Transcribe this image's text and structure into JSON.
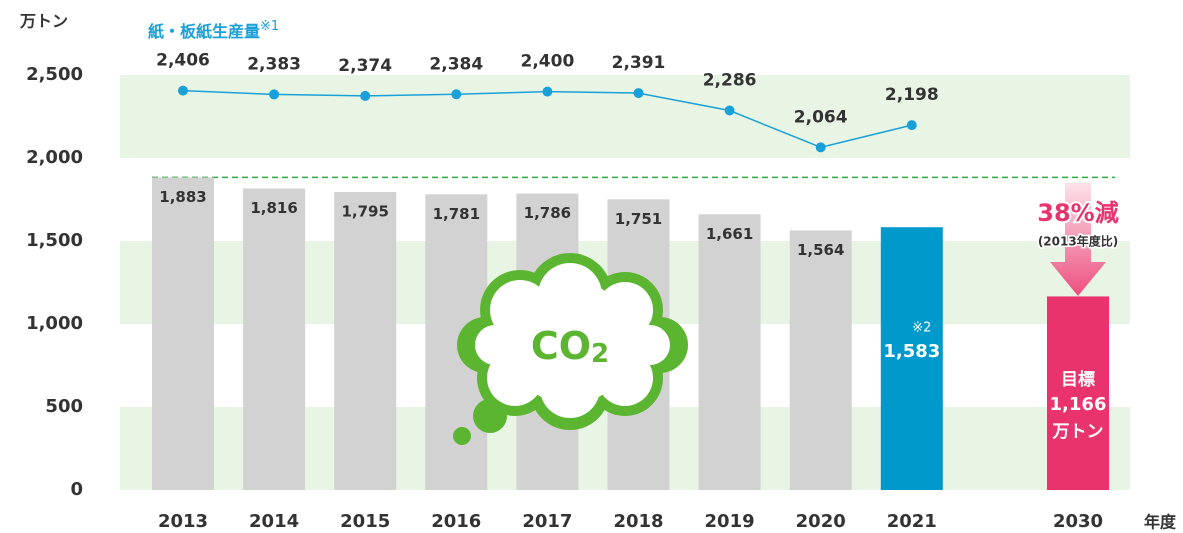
{
  "chart_data": {
    "type": "bar",
    "y_unit": "万トン",
    "x_label": "年度",
    "categories": [
      "2013",
      "2014",
      "2015",
      "2016",
      "2017",
      "2018",
      "2019",
      "2020",
      "2021",
      "2030"
    ],
    "series": [
      {
        "type": "bar",
        "colors": [
          "#d2d2d2",
          "#d2d2d2",
          "#d2d2d2",
          "#d2d2d2",
          "#d2d2d2",
          "#d2d2d2",
          "#d2d2d2",
          "#d2d2d2",
          "#0099cc",
          "#e8336d"
        ],
        "values": [
          1883,
          1816,
          1795,
          1781,
          1786,
          1751,
          1661,
          1564,
          1583,
          1166
        ],
        "value_labels": [
          "1,883",
          "1,816",
          "1,795",
          "1,781",
          "1,786",
          "1,751",
          "1,661",
          "1,564",
          "1,583",
          "1,166"
        ]
      },
      {
        "type": "line",
        "name": "紙・板紙生産量",
        "note": "※1",
        "color": "#1aa0d8",
        "values": [
          2406,
          2383,
          2374,
          2384,
          2400,
          2391,
          2286,
          2064,
          2198,
          null
        ],
        "value_labels": [
          "2,406",
          "2,383",
          "2,374",
          "2,384",
          "2,400",
          "2,391",
          "2,286",
          "2,064",
          "2,198",
          null
        ]
      }
    ],
    "ylim": [
      0,
      2500
    ],
    "yticks": [
      0,
      500,
      {
        "value": 1000,
        "label": "1,000"
      },
      {
        "value": 1500,
        "label": "1,500"
      },
      {
        "value": 2000,
        "label": "2,000"
      },
      {
        "value": 2500,
        "label": "2,500"
      }
    ],
    "band_color": "#e9f5e4",
    "reference_line": {
      "value": 1883,
      "color": "#2eaa3c"
    },
    "annotations": {
      "bar_note": "※2",
      "target": "目標",
      "target_unit": "万トン",
      "reduction": "38%減",
      "reduction_basis": "(2013年度比)",
      "cloud_text": [
        "CO",
        "2"
      ]
    }
  }
}
